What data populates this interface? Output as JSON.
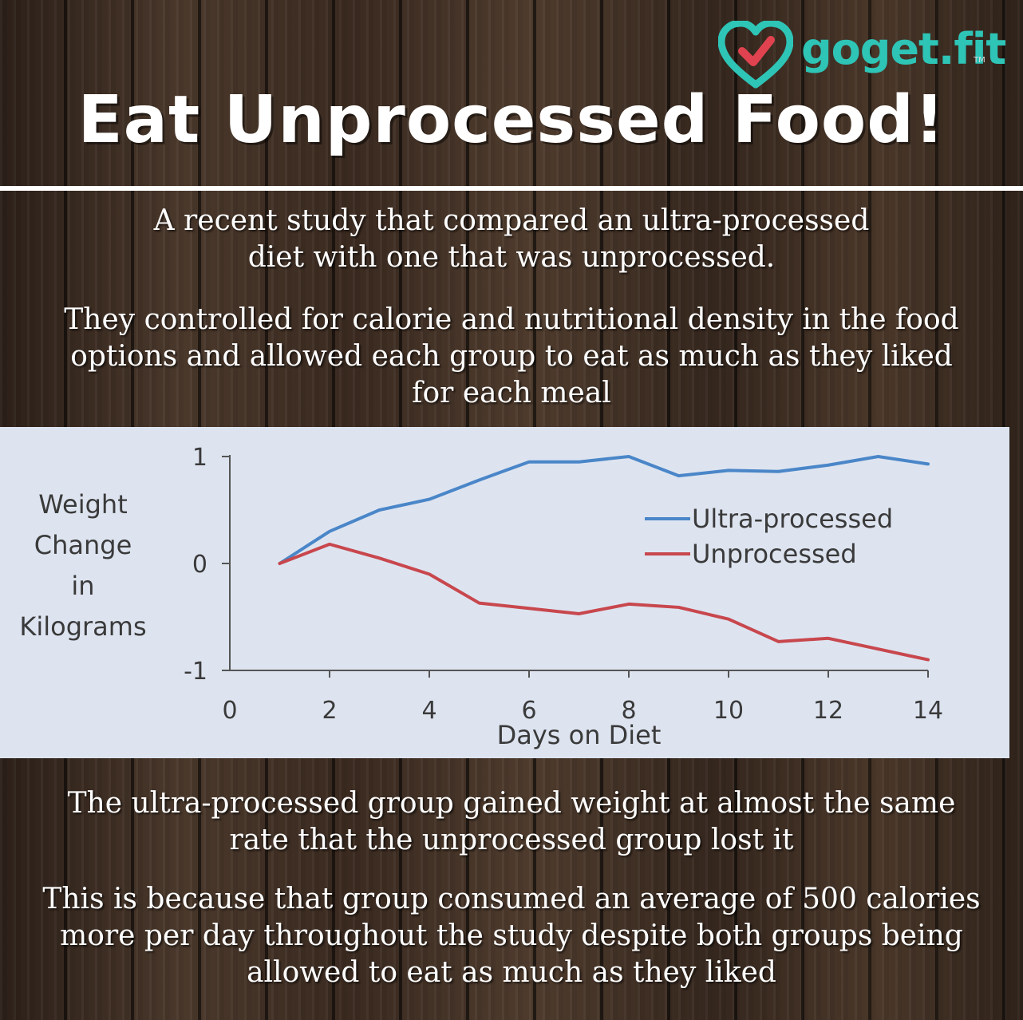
{
  "brand": {
    "name": "goget.fit",
    "tm": "TM",
    "colors": {
      "heart": "#2ec4b6",
      "check": "#e0434f"
    }
  },
  "title": "Eat Unprocessed Food!",
  "intro": [
    [
      "A recent study that compared an ultra-processed",
      "diet with one that was unprocessed."
    ],
    [
      "They controlled for calorie and nutritional density in the food",
      "options and allowed each group to eat as much as they liked",
      "for each meal"
    ]
  ],
  "outro": [
    [
      "The ultra-processed group gained weight at almost the same",
      "rate that the unprocessed group lost it"
    ],
    [
      "This is because that group consumed an average of 500 calories",
      "more per day throughout the study despite both groups being",
      "allowed to eat as much as they liked"
    ]
  ],
  "chart_data": {
    "type": "line",
    "xlabel": "Days on Diet",
    "ylabel_lines": [
      "Weight",
      "Change",
      "in",
      "Kilograms"
    ],
    "xlim": [
      0,
      14
    ],
    "ylim": [
      -1,
      1
    ],
    "xticks": [
      "0",
      "2",
      "4",
      "6",
      "8",
      "10",
      "12",
      "14"
    ],
    "yticks": [
      "1",
      "0",
      "-1"
    ],
    "grid": false,
    "legend_position": "upper-right",
    "series": [
      {
        "name": "Ultra-processed",
        "color": "#4a86c8",
        "x": [
          1,
          2,
          3,
          4,
          5,
          6,
          7,
          8,
          9,
          10,
          11,
          12,
          13,
          14
        ],
        "y": [
          0,
          0.3,
          0.5,
          0.6,
          0.78,
          0.95,
          0.95,
          1.0,
          0.82,
          0.87,
          0.86,
          0.92,
          1.0,
          0.93
        ]
      },
      {
        "name": "Unprocessed",
        "color": "#c8474d",
        "x": [
          1,
          2,
          3,
          4,
          5,
          6,
          7,
          8,
          9,
          10,
          11,
          12,
          13,
          14
        ],
        "y": [
          0,
          0.18,
          0.05,
          -0.1,
          -0.37,
          -0.42,
          -0.47,
          -0.38,
          -0.41,
          -0.52,
          -0.73,
          -0.7,
          -0.8,
          -0.9
        ]
      }
    ]
  }
}
